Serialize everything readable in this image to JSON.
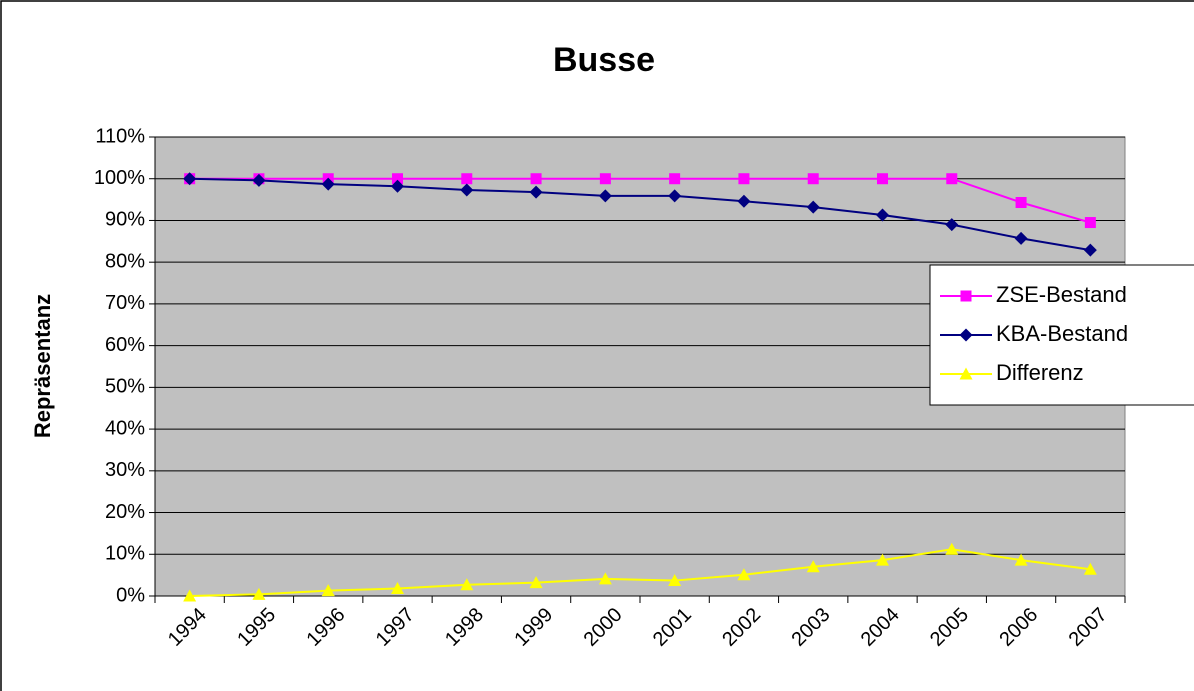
{
  "chart_data": {
    "type": "line",
    "title": "Busse",
    "y_label": "Repräsentanz",
    "categories": [
      "1994",
      "1995",
      "1996",
      "1997",
      "1998",
      "1999",
      "2000",
      "2001",
      "2002",
      "2003",
      "2004",
      "2005",
      "2006",
      "2007"
    ],
    "series": [
      {
        "name": "ZSE-Bestand",
        "color": "#ff00ff",
        "marker": "square",
        "values": [
          100,
          100,
          100,
          100,
          100,
          100,
          100,
          100,
          100,
          100,
          100,
          100,
          94.3,
          89.5
        ]
      },
      {
        "name": "KBA-Bestand",
        "color": "#000080",
        "marker": "diamond",
        "values": [
          100,
          99.6,
          98.7,
          98.2,
          97.3,
          96.8,
          95.9,
          95.9,
          94.6,
          93.2,
          91.3,
          89,
          85.7,
          82.9
        ]
      },
      {
        "name": "Differenz",
        "color": "#ffff00",
        "marker": "triangle",
        "values": [
          0,
          0.4,
          1.3,
          1.8,
          2.7,
          3.2,
          4.1,
          3.7,
          5.1,
          7,
          8.6,
          11.2,
          8.6,
          6.4
        ]
      }
    ],
    "ylim": [
      0,
      110
    ],
    "yticks": [
      {
        "value": 0,
        "label": "0%"
      },
      {
        "value": 10,
        "label": "10%"
      },
      {
        "value": 20,
        "label": "20%"
      },
      {
        "value": 30,
        "label": "30%"
      },
      {
        "value": 40,
        "label": "40%"
      },
      {
        "value": 50,
        "label": "50%"
      },
      {
        "value": 60,
        "label": "60%"
      },
      {
        "value": 70,
        "label": "70%"
      },
      {
        "value": 80,
        "label": "80%"
      },
      {
        "value": 90,
        "label": "90%"
      },
      {
        "value": 100,
        "label": "100%"
      },
      {
        "value": 110,
        "label": "110%"
      }
    ],
    "grid": true,
    "legend": "right",
    "plot_background": "#c0c0c0"
  }
}
